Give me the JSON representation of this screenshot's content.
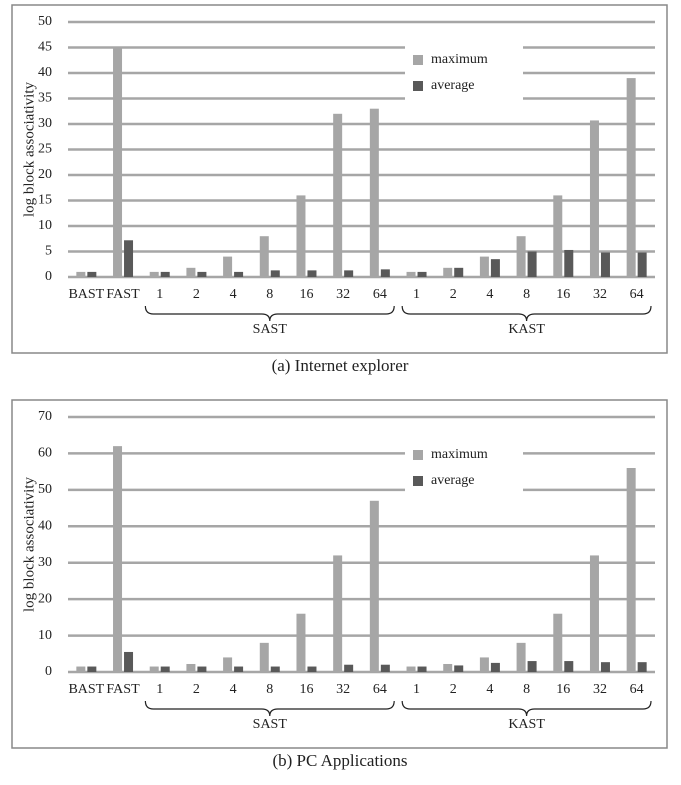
{
  "chart_data": [
    {
      "type": "bar",
      "caption": "(a) Internet explorer",
      "y_label": "log block associativity",
      "categories": [
        "BAST",
        "FAST",
        "1",
        "2",
        "4",
        "8",
        "16",
        "32",
        "64",
        "1",
        "2",
        "4",
        "8",
        "16",
        "32",
        "64"
      ],
      "group_labels": [
        "SAST",
        "KAST"
      ],
      "series": [
        {
          "name": "maximum",
          "color": "#a6a6a6",
          "values": [
            1,
            45,
            1,
            1.8,
            4,
            8,
            16,
            32,
            33,
            1,
            1.8,
            4,
            8,
            16,
            30.7,
            39
          ]
        },
        {
          "name": "average",
          "color": "#595959",
          "values": [
            1,
            7.2,
            1,
            1,
            1,
            1.3,
            1.3,
            1.3,
            1.5,
            1,
            1.8,
            3.5,
            5,
            5.3,
            4.8,
            4.8
          ]
        }
      ],
      "ylim": [
        0,
        50
      ],
      "yticks": [
        0,
        5,
        10,
        15,
        20,
        25,
        30,
        35,
        40,
        45,
        50
      ],
      "grid": true,
      "legend": "upper right"
    },
    {
      "type": "bar",
      "caption": "(b) PC Applications",
      "y_label": "log block associativity",
      "categories": [
        "BAST",
        "FAST",
        "1",
        "2",
        "4",
        "8",
        "16",
        "32",
        "64",
        "1",
        "2",
        "4",
        "8",
        "16",
        "32",
        "64"
      ],
      "group_labels": [
        "SAST",
        "KAST"
      ],
      "series": [
        {
          "name": "maximum",
          "color": "#a6a6a6",
          "values": [
            1.5,
            62,
            1.5,
            2.2,
            4,
            8,
            16,
            32,
            47,
            1.5,
            2.2,
            4,
            8,
            16,
            32,
            56
          ]
        },
        {
          "name": "average",
          "color": "#595959",
          "values": [
            1.5,
            5.5,
            1.5,
            1.5,
            1.5,
            1.5,
            1.5,
            2,
            2,
            1.5,
            1.8,
            2.5,
            3,
            3,
            2.7,
            2.7
          ]
        }
      ],
      "ylim": [
        0,
        70
      ],
      "yticks": [
        0,
        10,
        20,
        30,
        40,
        50,
        60,
        70
      ],
      "grid": true,
      "legend": "upper right"
    }
  ]
}
